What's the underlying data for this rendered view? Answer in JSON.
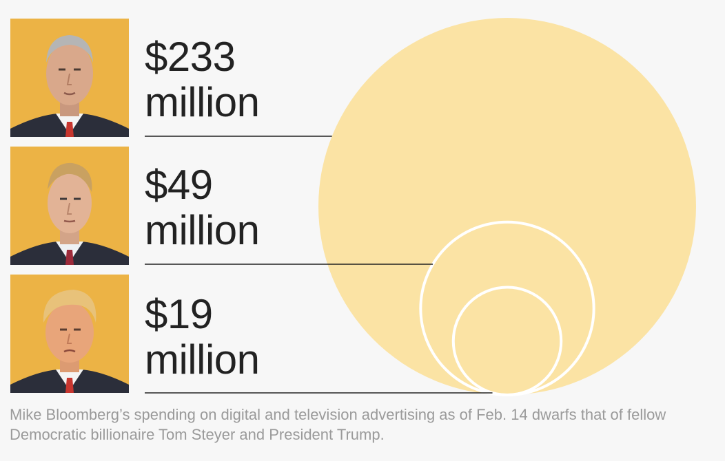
{
  "chart_data": {
    "type": "bubble",
    "unit": "million USD",
    "series": [
      {
        "value": 233,
        "label_value": "$233",
        "label_unit": "million",
        "portrait": "mike-bloomberg-portrait"
      },
      {
        "value": 49,
        "label_value": "$49",
        "label_unit": "million",
        "portrait": "tom-steyer-portrait"
      },
      {
        "value": 19,
        "label_value": "$19",
        "label_unit": "million",
        "portrait": "donald-trump-portrait"
      }
    ],
    "caption": "Mike Bloomberg’s spending on digital and television advertising as of Feb. 14 dwarfs that of fellow Democratic billionaire Tom Steyer and President Trump."
  },
  "colors": {
    "background": "#f7f7f7",
    "bubble_fill": "#fbe3a4",
    "bubble_stroke": "#ffffff",
    "portrait_bg": "#ecb345",
    "leader_line": "#222222",
    "label_text": "#222222",
    "caption_text": "#9a9a9a"
  }
}
